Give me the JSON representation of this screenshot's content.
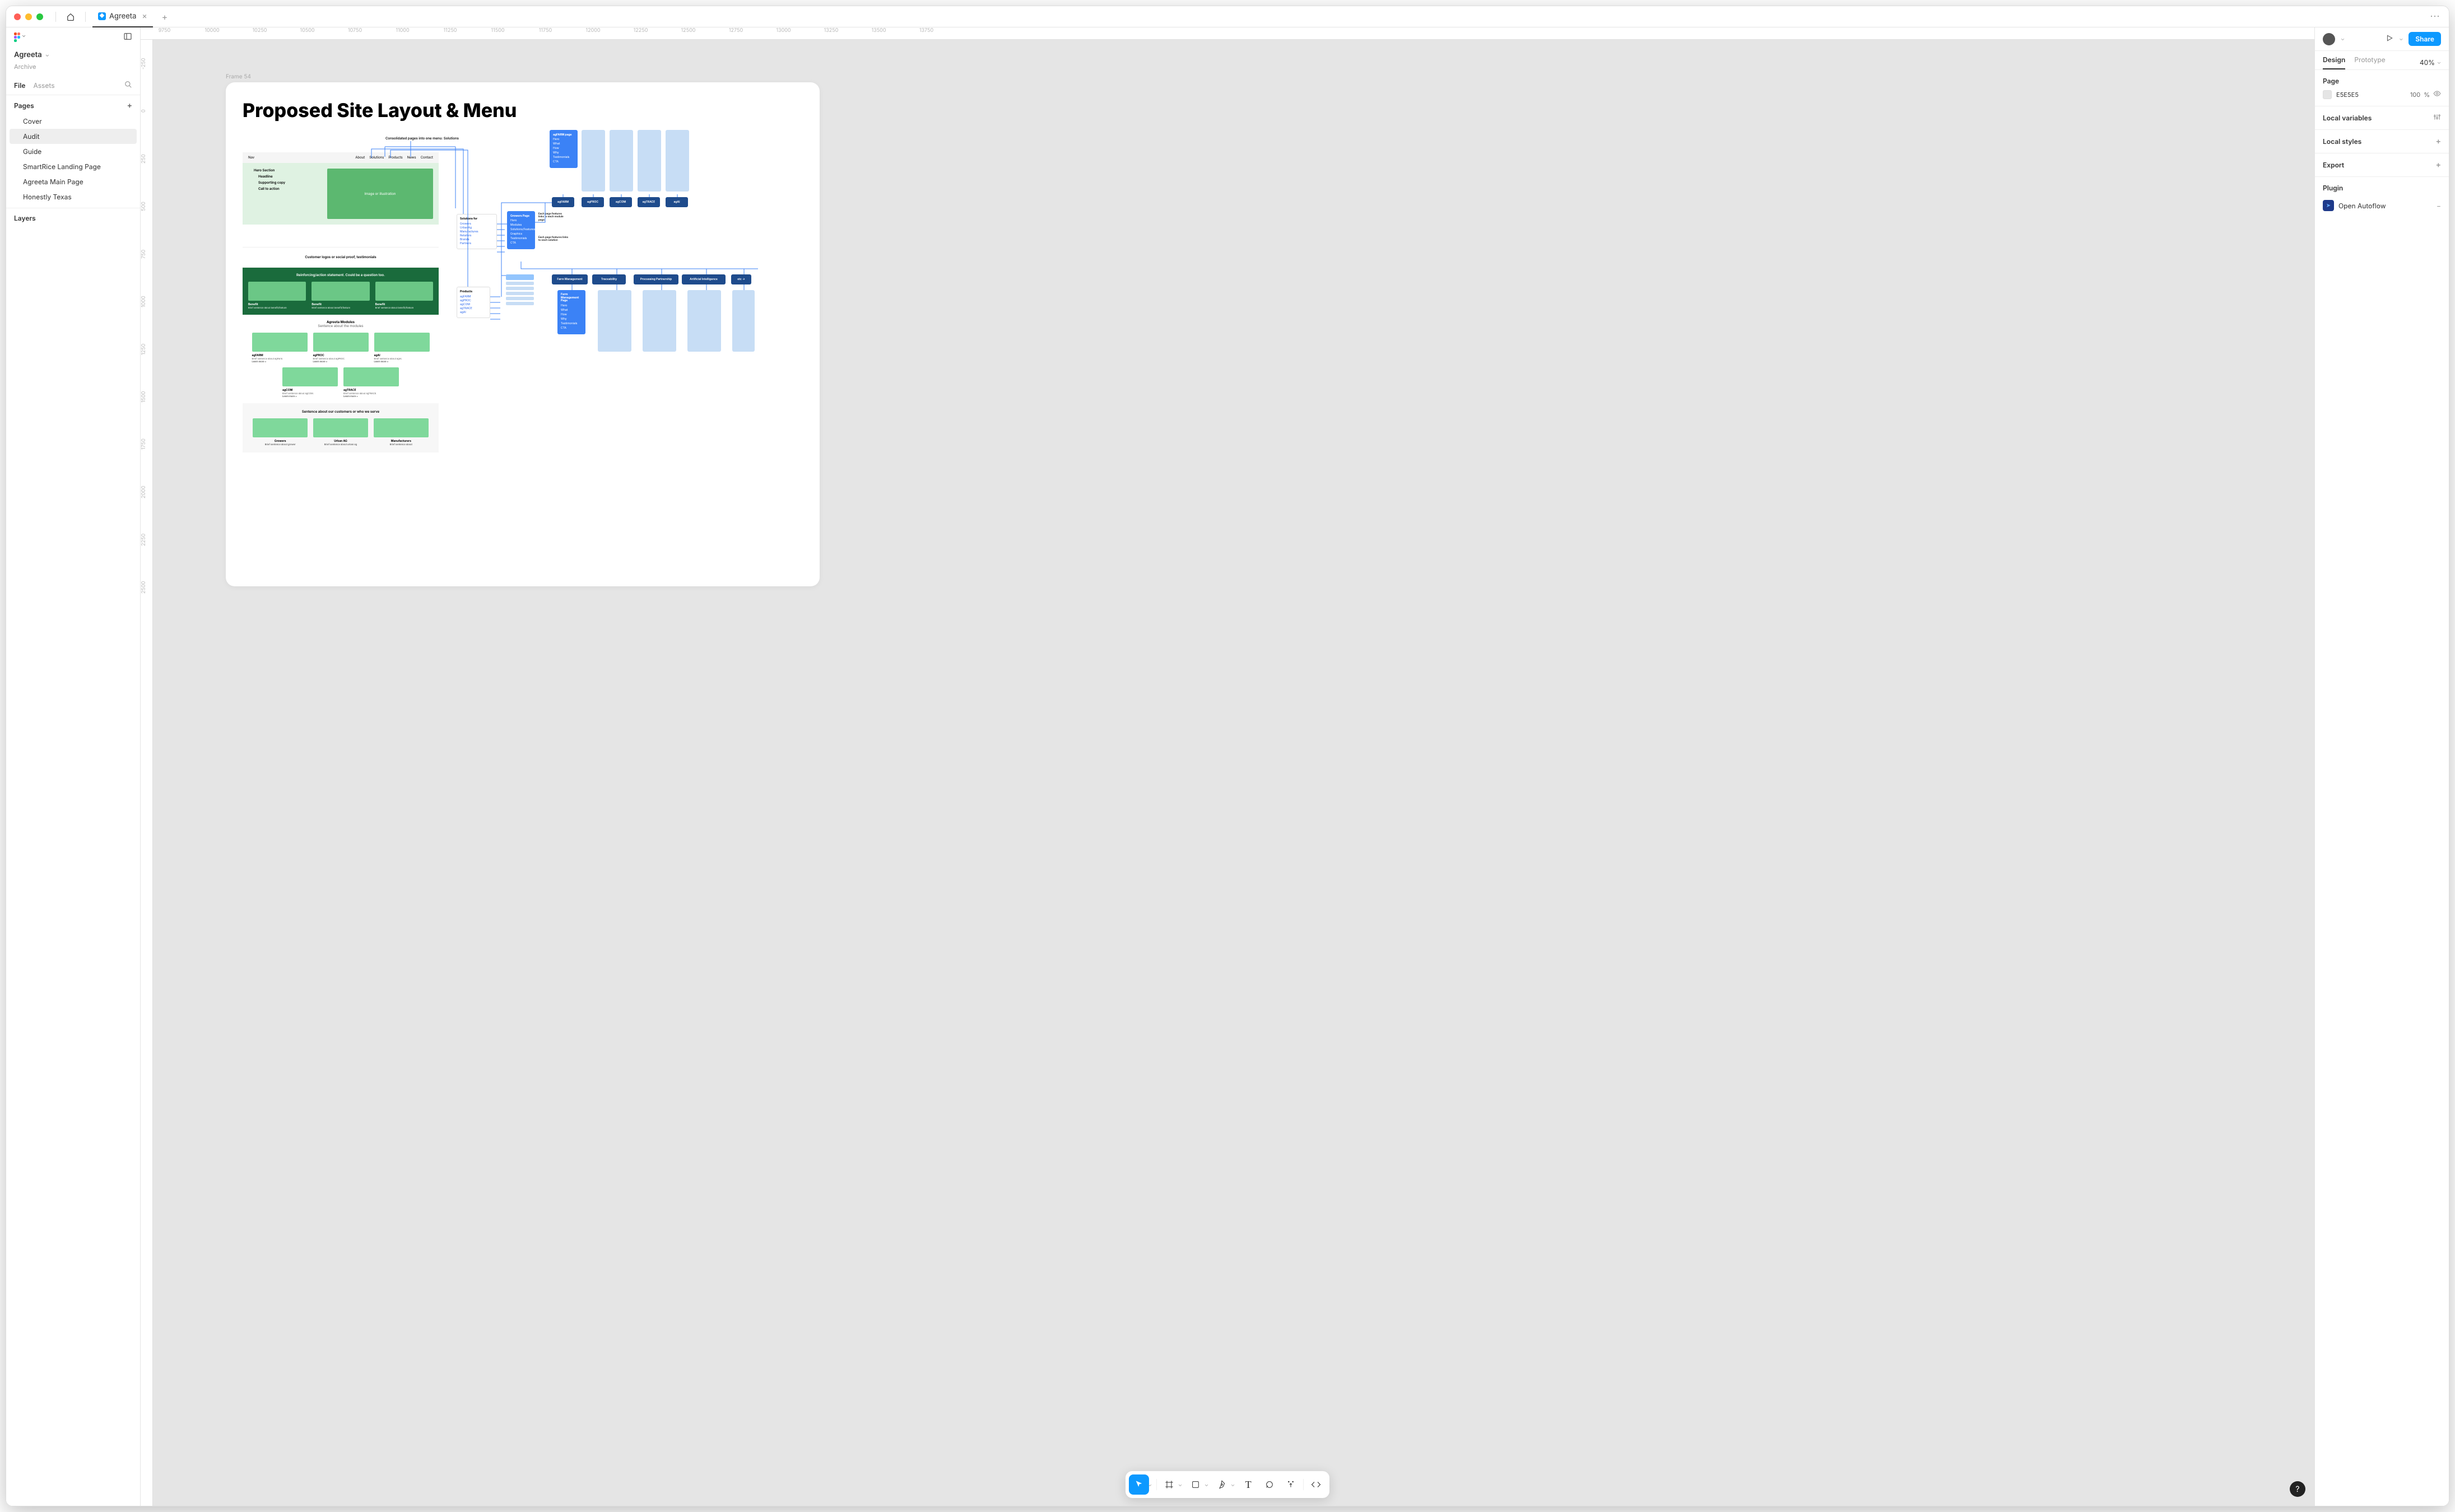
{
  "titlebar": {
    "tabName": "Agreeta"
  },
  "leftPanel": {
    "brand": "Agreeta",
    "brandSub": "Archive",
    "fileTab": "File",
    "assetsTab": "Assets",
    "pagesLabel": "Pages",
    "pages": [
      "Cover",
      "Audit",
      "Guide",
      "SmartRice Landing Page",
      "Agreeta Main Page",
      "Honestly Texas"
    ],
    "activePageIndex": 1,
    "layersLabel": "Layers"
  },
  "ruler": {
    "hTicks": [
      "9750",
      "10000",
      "10250",
      "10500",
      "10750",
      "11000",
      "11250",
      "11500",
      "11750",
      "12000",
      "12250",
      "12500",
      "12750",
      "13000",
      "13250",
      "13500",
      "13750"
    ],
    "vTicks": [
      "-250",
      "0",
      "250",
      "500",
      "750",
      "1000",
      "1250",
      "1500",
      "1750",
      "2000",
      "2250",
      "2500"
    ]
  },
  "canvas": {
    "frameLabel": "Frame 54",
    "heading": "Proposed Site Layout & Menu",
    "consolidatedNote": "Consolidated pages into one menu: Solutions",
    "nav": {
      "left": "Nav",
      "items": [
        "About",
        "Solutions",
        "Products",
        "News",
        "Contact"
      ]
    },
    "hero": {
      "h": "Hero Section",
      "headline": "Headline",
      "copy": "Supporting copy",
      "cta": "Call to action",
      "img": "Image or illustration"
    },
    "proof": "Customer logos or social proof, testimonials",
    "reinforce": "Reinforcing/action statement. Could be a question too.",
    "benefit": {
      "t": "Benefit",
      "s": "Brief sentence about benefit/feature"
    },
    "modules": {
      "h": "Agreeta Modules",
      "s": "Sentence about the modules",
      "row1": [
        {
          "t": "agFARM",
          "s": "Brief sentence about agFarm.",
          "lm": "Learn more >"
        },
        {
          "t": "agPROC",
          "s": "Brief sentence about agPROC.",
          "lm": "Learn more >"
        },
        {
          "t": "agAI",
          "s": "Brief sentence about agAI.",
          "lm": "Learn more >"
        }
      ],
      "row2": [
        {
          "t": "agCOM",
          "s": "Brief sentence about agCOM.",
          "lm": "Learn more >"
        },
        {
          "t": "agTRACE",
          "s": "Brief sentence about agTRACE.",
          "lm": "Learn more >"
        }
      ]
    },
    "serve": "Sentence about our customers or who we serve",
    "serveRow": [
      {
        "t": "Growers",
        "s": "Brief sentence about grower"
      },
      {
        "t": "Urban AG",
        "s": "Brief sentence about urban ag"
      },
      {
        "t": "Manufacturers",
        "s": "Brief sentence about"
      }
    ],
    "solutionsCard": {
      "h": "Solutions for",
      "items": [
        "Growers",
        "UrbanAg",
        "Manufactures",
        "Retailers",
        "Brands",
        "Partners"
      ]
    },
    "productsCard": {
      "h": "Products",
      "items": [
        "agFARM",
        "agPROC",
        "agCOM",
        "agTRACE",
        "agAI"
      ]
    },
    "agfarmPage": {
      "h": "agFARM page",
      "items": [
        "Hero",
        "What",
        "How",
        "Why",
        "Testimonials",
        "CTA"
      ]
    },
    "modBtns": [
      "agFARM",
      "agPROC",
      "agCOM",
      "agTRACE",
      "agAI"
    ],
    "note1": "Each page features links to each module page.",
    "growersPage": {
      "h": "Growers Page",
      "items": [
        "Hero",
        "Modules",
        "Solutions/Features",
        "Graphics",
        "Testimonials",
        "CTA"
      ]
    },
    "note2": "Each page features links to each solution",
    "solBtns": [
      "Farm Management",
      "Traceability",
      "Processing Partnership",
      "Artificial Intelligence",
      "etc →"
    ],
    "fmPage": {
      "h": "Farm Management Page",
      "items": [
        "Hero",
        "What",
        "How",
        "Why",
        "Testimonials",
        "CTA"
      ]
    },
    "colors": {
      "bluePrimary": "#3b82f6",
      "blueDark": "#1e4b8c",
      "blueLight": "#c7ddf5",
      "greenDark": "#1a6b3c",
      "greenMid": "#5cb870",
      "greenLight": "#7fd89b",
      "greenPale": "#dff2e2",
      "bg": "#e5e5e5"
    }
  },
  "rightPanel": {
    "designTab": "Design",
    "protoTab": "Prototype",
    "zoom": "40%",
    "pageLabel": "Page",
    "bgColor": "E5E5E5",
    "bgOpacity": "100",
    "bgUnit": "%",
    "localVars": "Local variables",
    "localStyles": "Local styles",
    "exportLbl": "Export",
    "pluginLbl": "Plugin",
    "pluginName": "Open Autoflow",
    "shareBtn": "Share"
  }
}
